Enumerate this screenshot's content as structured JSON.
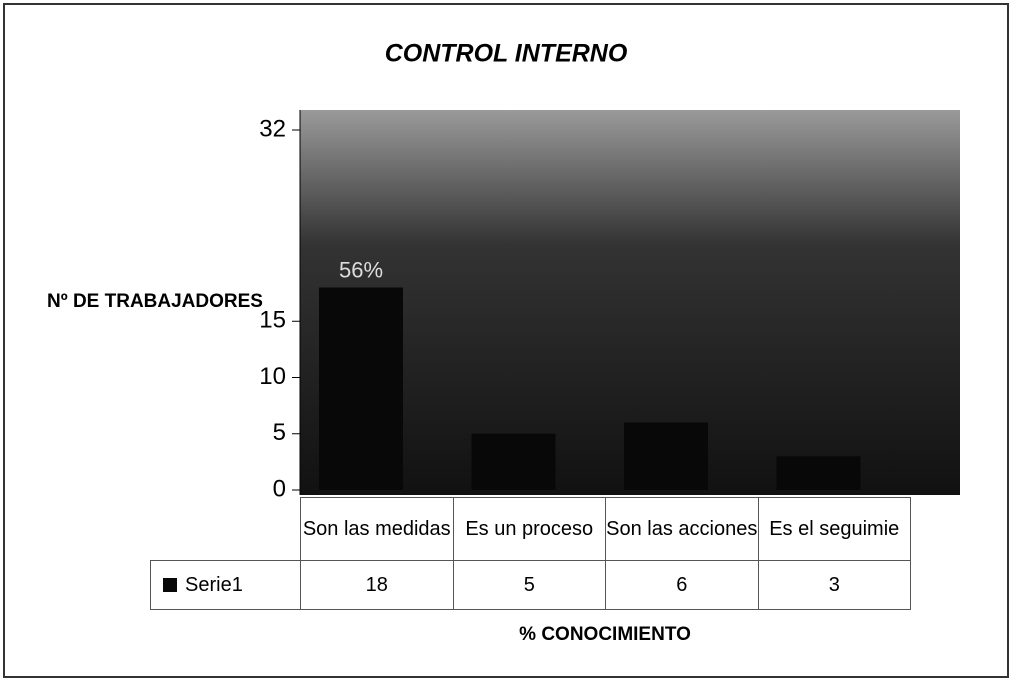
{
  "chart_data": {
    "type": "bar",
    "title": "CONTROL INTERNO",
    "y_label": "Nº DE TRABAJADORES",
    "x_label": "% CONOCIMIENTO",
    "categories": [
      "Son las medidas",
      "Es un proceso",
      "Son las acciones",
      "Es el seguimie"
    ],
    "series": [
      {
        "name": "Serie1",
        "color": "#080808",
        "values": [
          18,
          5,
          6,
          3
        ]
      }
    ],
    "annotations": [
      "56%"
    ],
    "ylim": [
      0,
      32
    ],
    "yticks": [
      0,
      5,
      10,
      15,
      32
    ]
  }
}
